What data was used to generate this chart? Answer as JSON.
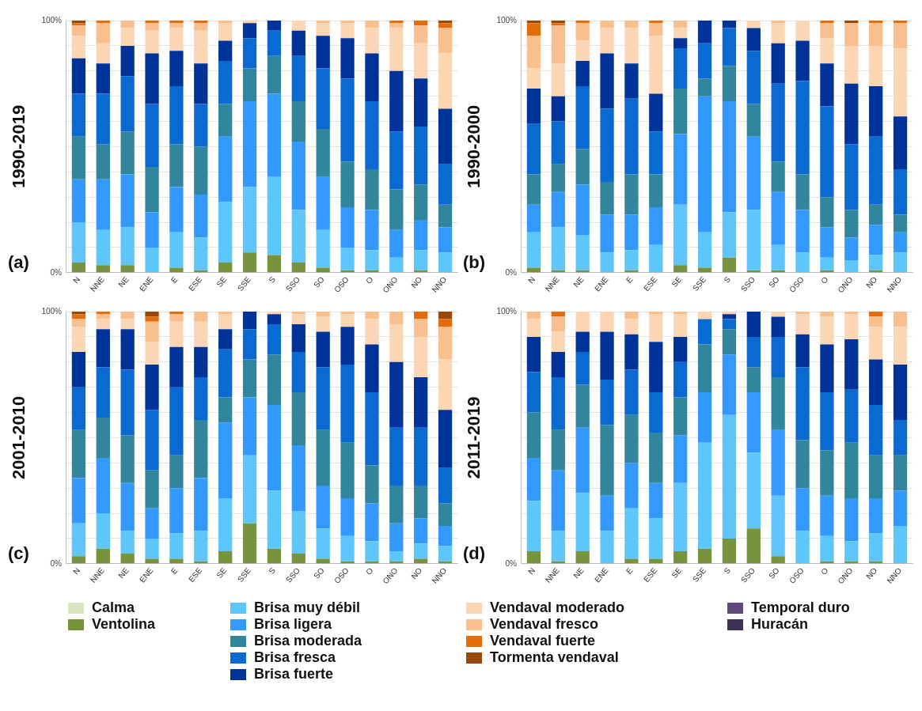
{
  "chart_data": [
    {
      "type": "bar",
      "ylabel": "1990-2019",
      "annotations": [
        "(a)"
      ],
      "stacked": true,
      "grid": "y",
      "legend": "bottom",
      "categories": [
        "N",
        "NNE",
        "NE",
        "ENE",
        "E",
        "ESE",
        "SE",
        "SSE",
        "S",
        "SSO",
        "SO",
        "OSO",
        "O",
        "ONO",
        "NO",
        "NNO"
      ],
      "ylim": [
        0,
        100
      ],
      "yticks": [
        {
          "value": 0,
          "label": "0%"
        },
        {
          "value": 10,
          "label": null
        },
        {
          "value": 20,
          "label": null
        },
        {
          "value": 30,
          "label": null
        },
        {
          "value": 40,
          "label": null
        },
        {
          "value": 50,
          "label": null
        },
        {
          "value": 60,
          "label": null
        },
        {
          "value": 70,
          "label": null
        },
        {
          "value": 80,
          "label": null
        },
        {
          "value": 90,
          "label": null
        },
        {
          "value": 100,
          "label": "100%"
        }
      ],
      "series": [
        {
          "name": "Calma",
          "color": "#d7e4bd",
          "values": [
            0,
            0,
            0,
            0,
            0,
            0,
            0,
            0,
            0,
            0,
            0,
            0,
            0,
            0,
            0,
            0
          ]
        },
        {
          "name": "Ventolina",
          "color": "#77933c",
          "values": [
            4,
            3,
            3,
            0,
            2,
            1,
            4,
            8,
            7,
            4,
            2,
            1,
            1,
            0,
            1,
            0
          ]
        },
        {
          "name": "Brisa muy débil",
          "color": "#5ec6fa",
          "values": [
            16,
            14,
            15,
            10,
            14,
            13,
            24,
            26,
            31,
            21,
            15,
            9,
            8,
            6,
            8,
            8
          ]
        },
        {
          "name": "Brisa ligera",
          "color": "#3399ff",
          "values": [
            17,
            20,
            21,
            14,
            18,
            17,
            26,
            34,
            33,
            27,
            21,
            16,
            16,
            11,
            12,
            10
          ]
        },
        {
          "name": "Brisa moderada",
          "color": "#31859c",
          "values": [
            17,
            14,
            17,
            18,
            17,
            19,
            13,
            13,
            15,
            16,
            19,
            18,
            16,
            16,
            14,
            9
          ]
        },
        {
          "name": "Brisa fresca",
          "color": "#0b6ad2",
          "values": [
            17,
            20,
            22,
            25,
            23,
            17,
            17,
            12,
            10,
            18,
            24,
            33,
            27,
            23,
            23,
            16
          ]
        },
        {
          "name": "Brisa fuerte",
          "color": "#00339a",
          "values": [
            14,
            12,
            12,
            20,
            14,
            16,
            8,
            6,
            4,
            10,
            13,
            16,
            19,
            24,
            19,
            22
          ]
        },
        {
          "name": "Vendaval moderado",
          "color": "#fcd5b5",
          "values": [
            9,
            8,
            7,
            9,
            9,
            13,
            7,
            1,
            0,
            4,
            5,
            6,
            10,
            17,
            14,
            22
          ]
        },
        {
          "name": "Vendaval fresco",
          "color": "#fabf8f",
          "values": [
            4,
            8,
            3,
            3,
            2,
            3,
            1,
            0,
            0,
            0,
            1,
            1,
            3,
            2,
            7,
            10
          ]
        },
        {
          "name": "Vendaval fuerte",
          "color": "#e46c0a",
          "values": [
            1,
            1,
            0,
            1,
            1,
            1,
            0,
            0,
            0,
            0,
            0,
            0,
            0,
            1,
            2,
            2
          ]
        },
        {
          "name": "Tormenta vendaval",
          "color": "#984807",
          "values": [
            1,
            0,
            0,
            0,
            0,
            0,
            0,
            0,
            0,
            0,
            0,
            0,
            0,
            0,
            0,
            1
          ]
        },
        {
          "name": "Temporal duro",
          "color": "#604a7b",
          "values": [
            0,
            0,
            0,
            0,
            0,
            0,
            0,
            0,
            0,
            0,
            0,
            0,
            0,
            0,
            0,
            0
          ]
        },
        {
          "name": "Huracán",
          "color": "#3f3151",
          "values": [
            0,
            0,
            0,
            0,
            0,
            0,
            0,
            0,
            0,
            0,
            0,
            0,
            0,
            0,
            0,
            0
          ]
        }
      ]
    },
    {
      "type": "bar",
      "ylabel": "1990-2000",
      "annotations": [
        "(b)"
      ],
      "stacked": true,
      "grid": "y",
      "categories": [
        "N",
        "NNE",
        "NE",
        "ENE",
        "E",
        "ESE",
        "SE",
        "SSE",
        "S",
        "SSO",
        "SO",
        "OSO",
        "O",
        "ONO",
        "NO",
        "NNO"
      ],
      "ylim": [
        0,
        100
      ],
      "yticks": [
        {
          "value": 0,
          "label": "0%"
        },
        {
          "value": 10,
          "label": null
        },
        {
          "value": 20,
          "label": null
        },
        {
          "value": 30,
          "label": null
        },
        {
          "value": 40,
          "label": null
        },
        {
          "value": 50,
          "label": null
        },
        {
          "value": 60,
          "label": null
        },
        {
          "value": 70,
          "label": null
        },
        {
          "value": 80,
          "label": null
        },
        {
          "value": 90,
          "label": null
        },
        {
          "value": 100,
          "label": "100%"
        }
      ],
      "series": [
        {
          "color": "#d7e4bd",
          "values": [
            0,
            0,
            0,
            0,
            0,
            0,
            0,
            0,
            0,
            0,
            0,
            0,
            0,
            0,
            0,
            0
          ]
        },
        {
          "color": "#77933c",
          "values": [
            2,
            1,
            1,
            0,
            1,
            0,
            3,
            2,
            6,
            1,
            1,
            0,
            1,
            0,
            1,
            0
          ]
        },
        {
          "color": "#5ec6fa",
          "values": [
            14,
            17,
            14,
            8,
            8,
            11,
            24,
            14,
            18,
            24,
            10,
            8,
            5,
            5,
            6,
            8
          ]
        },
        {
          "color": "#3399ff",
          "values": [
            11,
            14,
            20,
            15,
            14,
            15,
            28,
            54,
            44,
            29,
            21,
            17,
            12,
            9,
            12,
            8
          ]
        },
        {
          "color": "#31859c",
          "values": [
            12,
            11,
            14,
            13,
            16,
            13,
            18,
            7,
            14,
            13,
            12,
            14,
            12,
            11,
            8,
            7
          ]
        },
        {
          "color": "#0b6ad2",
          "values": [
            20,
            17,
            25,
            29,
            30,
            17,
            16,
            14,
            15,
            21,
            31,
            37,
            36,
            26,
            27,
            18
          ]
        },
        {
          "color": "#00339a",
          "values": [
            14,
            10,
            10,
            22,
            14,
            15,
            4,
            9,
            3,
            9,
            16,
            16,
            17,
            24,
            20,
            21
          ]
        },
        {
          "color": "#fcd5b5",
          "values": [
            8,
            13,
            8,
            10,
            14,
            23,
            4,
            0,
            0,
            3,
            8,
            8,
            10,
            15,
            16,
            27
          ]
        },
        {
          "color": "#fabf8f",
          "values": [
            13,
            15,
            7,
            3,
            3,
            5,
            3,
            0,
            0,
            0,
            1,
            0,
            6,
            9,
            9,
            10
          ]
        },
        {
          "color": "#e46c0a",
          "values": [
            5,
            1,
            1,
            0,
            0,
            1,
            0,
            0,
            0,
            0,
            0,
            0,
            1,
            0,
            1,
            1
          ]
        },
        {
          "color": "#984807",
          "values": [
            1,
            1,
            0,
            0,
            0,
            0,
            0,
            0,
            0,
            0,
            0,
            0,
            0,
            1,
            0,
            0
          ]
        },
        {
          "color": "#604a7b",
          "values": [
            0,
            0,
            0,
            0,
            0,
            0,
            0,
            0,
            0,
            0,
            0,
            0,
            0,
            0,
            0,
            0
          ]
        },
        {
          "color": "#3f3151",
          "values": [
            0,
            0,
            0,
            0,
            0,
            0,
            0,
            0,
            0,
            0,
            0,
            0,
            0,
            0,
            0,
            0
          ]
        }
      ]
    },
    {
      "type": "bar",
      "ylabel": "2001-2010",
      "annotations": [
        "(c)"
      ],
      "stacked": true,
      "grid": "y",
      "categories": [
        "N",
        "NNE",
        "NE",
        "ENE",
        "E",
        "ESE",
        "SE",
        "SSE",
        "S",
        "SSO",
        "SO",
        "OSO",
        "O",
        "ONO",
        "NO",
        "NNO"
      ],
      "ylim": [
        0,
        100
      ],
      "yticks": [
        {
          "value": 0,
          "label": "0%"
        },
        {
          "value": 10,
          "label": null
        },
        {
          "value": 20,
          "label": null
        },
        {
          "value": 30,
          "label": null
        },
        {
          "value": 40,
          "label": null
        },
        {
          "value": 50,
          "label": null
        },
        {
          "value": 60,
          "label": null
        },
        {
          "value": 70,
          "label": null
        },
        {
          "value": 80,
          "label": null
        },
        {
          "value": 90,
          "label": null
        },
        {
          "value": 100,
          "label": "100%"
        }
      ],
      "series": [
        {
          "color": "#d7e4bd",
          "values": [
            0,
            0,
            0,
            0,
            0,
            0,
            0,
            0,
            0,
            0,
            0,
            0,
            0,
            0,
            0,
            0
          ]
        },
        {
          "color": "#77933c",
          "values": [
            3,
            6,
            4,
            2,
            2,
            1,
            5,
            16,
            6,
            4,
            2,
            1,
            1,
            1,
            2,
            1
          ]
        },
        {
          "color": "#5ec6fa",
          "values": [
            13,
            14,
            9,
            8,
            10,
            12,
            21,
            27,
            23,
            17,
            12,
            10,
            8,
            4,
            6,
            6
          ]
        },
        {
          "color": "#3399ff",
          "values": [
            18,
            22,
            19,
            12,
            18,
            21,
            30,
            23,
            34,
            26,
            17,
            15,
            15,
            11,
            10,
            8
          ]
        },
        {
          "color": "#31859c",
          "values": [
            19,
            16,
            19,
            15,
            13,
            23,
            10,
            15,
            20,
            21,
            22,
            22,
            15,
            15,
            13,
            9
          ]
        },
        {
          "color": "#0b6ad2",
          "values": [
            17,
            20,
            26,
            24,
            27,
            17,
            19,
            12,
            12,
            16,
            25,
            31,
            29,
            23,
            23,
            14
          ]
        },
        {
          "color": "#00339a",
          "values": [
            14,
            15,
            16,
            18,
            16,
            12,
            8,
            7,
            4,
            11,
            14,
            15,
            19,
            26,
            20,
            23
          ]
        },
        {
          "color": "#fcd5b5",
          "values": [
            10,
            4,
            4,
            9,
            10,
            10,
            6,
            0,
            1,
            4,
            6,
            5,
            10,
            15,
            16,
            20
          ]
        },
        {
          "color": "#fabf8f",
          "values": [
            3,
            2,
            3,
            8,
            3,
            4,
            1,
            0,
            0,
            1,
            2,
            1,
            3,
            5,
            7,
            13
          ]
        },
        {
          "color": "#e46c0a",
          "values": [
            2,
            1,
            0,
            2,
            1,
            0,
            0,
            0,
            0,
            0,
            0,
            0,
            0,
            0,
            3,
            3
          ]
        },
        {
          "color": "#984807",
          "values": [
            1,
            0,
            0,
            2,
            0,
            0,
            0,
            0,
            0,
            0,
            0,
            0,
            0,
            0,
            0,
            3
          ]
        },
        {
          "color": "#604a7b",
          "values": [
            0,
            0,
            0,
            0,
            0,
            0,
            0,
            0,
            0,
            0,
            0,
            0,
            0,
            0,
            0,
            0
          ]
        },
        {
          "color": "#3f3151",
          "values": [
            0,
            0,
            0,
            0,
            0,
            0,
            0,
            0,
            0,
            0,
            0,
            0,
            0,
            0,
            0,
            0
          ]
        }
      ]
    },
    {
      "type": "bar",
      "ylabel": "2011-2019",
      "annotations": [
        "(d)"
      ],
      "stacked": true,
      "grid": "y",
      "categories": [
        "N",
        "NNE",
        "NE",
        "ENE",
        "E",
        "ESE",
        "SE",
        "SSE",
        "S",
        "SSO",
        "SO",
        "OSO",
        "O",
        "ONO",
        "NO",
        "NNO"
      ],
      "ylim": [
        0,
        100
      ],
      "yticks": [
        {
          "value": 0,
          "label": "0%"
        },
        {
          "value": 10,
          "label": null
        },
        {
          "value": 20,
          "label": null
        },
        {
          "value": 30,
          "label": null
        },
        {
          "value": 40,
          "label": null
        },
        {
          "value": 50,
          "label": null
        },
        {
          "value": 60,
          "label": null
        },
        {
          "value": 70,
          "label": null
        },
        {
          "value": 80,
          "label": null
        },
        {
          "value": 90,
          "label": null
        },
        {
          "value": 100,
          "label": "100%"
        }
      ],
      "series": [
        {
          "color": "#d7e4bd",
          "values": [
            0,
            0,
            0,
            0,
            0,
            0,
            0,
            0,
            0,
            0,
            0,
            0,
            0,
            0,
            0,
            0
          ]
        },
        {
          "color": "#77933c",
          "values": [
            5,
            1,
            5,
            0,
            2,
            2,
            5,
            6,
            10,
            14,
            3,
            0,
            1,
            1,
            1,
            0
          ]
        },
        {
          "color": "#5ec6fa",
          "values": [
            20,
            12,
            23,
            13,
            20,
            16,
            27,
            42,
            49,
            30,
            24,
            13,
            10,
            8,
            11,
            15
          ]
        },
        {
          "color": "#3399ff",
          "values": [
            17,
            24,
            26,
            14,
            18,
            14,
            19,
            20,
            24,
            24,
            26,
            17,
            16,
            17,
            14,
            14
          ]
        },
        {
          "color": "#31859c",
          "values": [
            18,
            16,
            17,
            28,
            19,
            20,
            15,
            19,
            10,
            10,
            21,
            19,
            18,
            22,
            17,
            14
          ]
        },
        {
          "color": "#0b6ad2",
          "values": [
            16,
            21,
            13,
            18,
            18,
            16,
            14,
            10,
            4,
            12,
            16,
            29,
            23,
            21,
            20,
            14
          ]
        },
        {
          "color": "#00339a",
          "values": [
            14,
            10,
            8,
            19,
            14,
            20,
            10,
            0,
            2,
            10,
            8,
            13,
            19,
            20,
            18,
            22
          ]
        },
        {
          "color": "#fcd5b5",
          "values": [
            7,
            8,
            8,
            8,
            6,
            11,
            9,
            3,
            1,
            0,
            2,
            8,
            11,
            10,
            13,
            15
          ]
        },
        {
          "color": "#fabf8f",
          "values": [
            3,
            6,
            0,
            0,
            3,
            1,
            1,
            0,
            0,
            0,
            0,
            1,
            2,
            1,
            4,
            6
          ]
        },
        {
          "color": "#e46c0a",
          "values": [
            0,
            2,
            0,
            0,
            0,
            0,
            0,
            0,
            0,
            0,
            0,
            0,
            0,
            0,
            2,
            0
          ]
        },
        {
          "color": "#984807",
          "values": [
            0,
            0,
            0,
            0,
            0,
            0,
            0,
            0,
            0,
            0,
            0,
            0,
            0,
            0,
            0,
            0
          ]
        },
        {
          "color": "#604a7b",
          "values": [
            0,
            0,
            0,
            0,
            0,
            0,
            0,
            0,
            0,
            0,
            0,
            0,
            0,
            0,
            0,
            0
          ]
        },
        {
          "color": "#3f3151",
          "values": [
            0,
            0,
            0,
            0,
            0,
            0,
            0,
            0,
            0,
            0,
            0,
            0,
            0,
            0,
            0,
            0
          ]
        }
      ]
    }
  ]
}
